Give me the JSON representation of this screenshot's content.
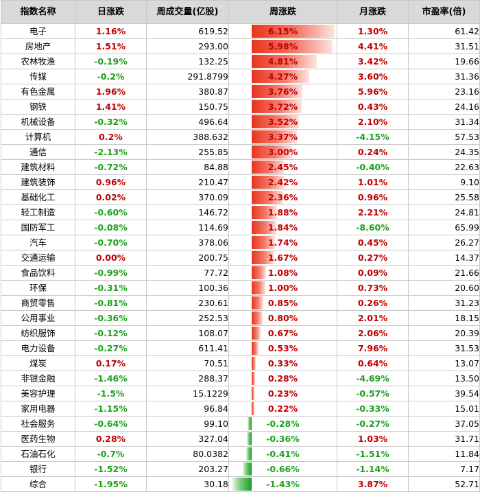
{
  "headers": [
    "指数名称",
    "日涨跌",
    "周成交量(亿股)",
    "周涨跌",
    "月涨跌",
    "市盈率(倍)"
  ],
  "colors": {
    "up": "#c00000",
    "down": "#1aa01a",
    "bar_up": "#e8341c",
    "bar_down": "#1e9a2c",
    "header_bg": "#d9d9d9"
  },
  "chart_data": {
    "type": "table",
    "columns": [
      "指数名称",
      "日涨跌",
      "周成交量(亿股)",
      "周涨跌",
      "月涨跌",
      "市盈率(倍)"
    ],
    "week_bar_scale": {
      "max_abs_percent": 6.15
    },
    "rows": [
      {
        "name": "电子",
        "daily": "1.16%",
        "volume": "619.52",
        "weekly": "6.15%",
        "monthly": "1.30%",
        "pe": "61.42"
      },
      {
        "name": "房地产",
        "daily": "1.51%",
        "volume": "293.00",
        "weekly": "5.98%",
        "monthly": "4.41%",
        "pe": "31.51"
      },
      {
        "name": "农林牧渔",
        "daily": "-0.19%",
        "volume": "132.25",
        "weekly": "4.81%",
        "monthly": "3.42%",
        "pe": "19.66"
      },
      {
        "name": "传媒",
        "daily": "-0.2%",
        "volume": "291.8799",
        "weekly": "4.27%",
        "monthly": "3.60%",
        "pe": "31.36"
      },
      {
        "name": "有色金属",
        "daily": "1.96%",
        "volume": "380.87",
        "weekly": "3.76%",
        "monthly": "5.96%",
        "pe": "23.16"
      },
      {
        "name": "钢铁",
        "daily": "1.41%",
        "volume": "150.75",
        "weekly": "3.72%",
        "monthly": "0.43%",
        "pe": "24.16"
      },
      {
        "name": "机械设备",
        "daily": "-0.32%",
        "volume": "496.64",
        "weekly": "3.52%",
        "monthly": "2.10%",
        "pe": "31.34"
      },
      {
        "name": "计算机",
        "daily": "0.2%",
        "volume": "388.632",
        "weekly": "3.37%",
        "monthly": "-4.15%",
        "pe": "57.53"
      },
      {
        "name": "通信",
        "daily": "-2.13%",
        "volume": "255.85",
        "weekly": "3.00%",
        "monthly": "0.24%",
        "pe": "24.35"
      },
      {
        "name": "建筑材料",
        "daily": "-0.72%",
        "volume": "84.88",
        "weekly": "2.45%",
        "monthly": "-0.40%",
        "pe": "22.63"
      },
      {
        "name": "建筑装饰",
        "daily": "0.96%",
        "volume": "210.47",
        "weekly": "2.42%",
        "monthly": "1.01%",
        "pe": "9.10"
      },
      {
        "name": "基础化工",
        "daily": "0.02%",
        "volume": "370.09",
        "weekly": "2.36%",
        "monthly": "0.96%",
        "pe": "25.58"
      },
      {
        "name": "轻工制造",
        "daily": "-0.60%",
        "volume": "146.72",
        "weekly": "1.88%",
        "monthly": "2.21%",
        "pe": "24.81"
      },
      {
        "name": "国防军工",
        "daily": "-0.08%",
        "volume": "114.69",
        "weekly": "1.84%",
        "monthly": "-8.60%",
        "pe": "65.99"
      },
      {
        "name": "汽车",
        "daily": "-0.70%",
        "volume": "378.06",
        "weekly": "1.74%",
        "monthly": "0.45%",
        "pe": "26.27"
      },
      {
        "name": "交通运输",
        "daily": "0.00%",
        "volume": "200.75",
        "weekly": "1.67%",
        "monthly": "0.27%",
        "pe": "14.37"
      },
      {
        "name": "食品饮料",
        "daily": "-0.99%",
        "volume": "77.72",
        "weekly": "1.08%",
        "monthly": "0.09%",
        "pe": "21.66"
      },
      {
        "name": "环保",
        "daily": "-0.31%",
        "volume": "100.36",
        "weekly": "1.00%",
        "monthly": "0.73%",
        "pe": "20.60"
      },
      {
        "name": "商贸零售",
        "daily": "-0.81%",
        "volume": "230.61",
        "weekly": "0.85%",
        "monthly": "0.26%",
        "pe": "31.23"
      },
      {
        "name": "公用事业",
        "daily": "-0.36%",
        "volume": "252.53",
        "weekly": "0.80%",
        "monthly": "2.01%",
        "pe": "18.15"
      },
      {
        "name": "纺织服饰",
        "daily": "-0.12%",
        "volume": "108.07",
        "weekly": "0.67%",
        "monthly": "2.06%",
        "pe": "20.39"
      },
      {
        "name": "电力设备",
        "daily": "-0.27%",
        "volume": "611.41",
        "weekly": "0.53%",
        "monthly": "7.96%",
        "pe": "31.53"
      },
      {
        "name": "煤炭",
        "daily": "0.17%",
        "volume": "70.51",
        "weekly": "0.33%",
        "monthly": "0.64%",
        "pe": "13.07"
      },
      {
        "name": "非银金融",
        "daily": "-1.46%",
        "volume": "288.37",
        "weekly": "0.28%",
        "monthly": "-4.69%",
        "pe": "13.50"
      },
      {
        "name": "美容护理",
        "daily": "-1.5%",
        "volume": "15.1229",
        "weekly": "0.23%",
        "monthly": "-0.57%",
        "pe": "39.54"
      },
      {
        "name": "家用电器",
        "daily": "-1.15%",
        "volume": "96.84",
        "weekly": "0.22%",
        "monthly": "-0.33%",
        "pe": "15.01"
      },
      {
        "name": "社会服务",
        "daily": "-0.64%",
        "volume": "99.10",
        "weekly": "-0.28%",
        "monthly": "-0.27%",
        "pe": "37.05"
      },
      {
        "name": "医药生物",
        "daily": "0.28%",
        "volume": "327.04",
        "weekly": "-0.36%",
        "monthly": "1.03%",
        "pe": "31.71"
      },
      {
        "name": "石油石化",
        "daily": "-0.7%",
        "volume": "80.0382",
        "weekly": "-0.41%",
        "monthly": "-1.51%",
        "pe": "11.84"
      },
      {
        "name": "银行",
        "daily": "-1.52%",
        "volume": "203.27",
        "weekly": "-0.66%",
        "monthly": "-1.14%",
        "pe": "7.17"
      },
      {
        "name": "综合",
        "daily": "-1.95%",
        "volume": "30.18",
        "weekly": "-1.43%",
        "monthly": "3.87%",
        "pe": "52.71"
      }
    ]
  }
}
